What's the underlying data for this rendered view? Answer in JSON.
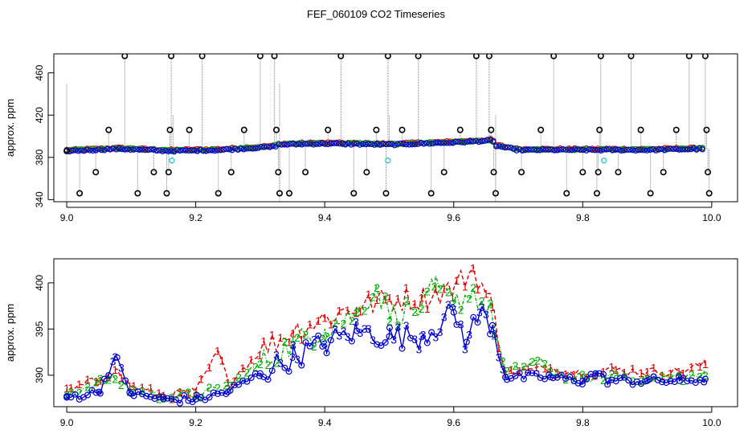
{
  "title": "FEF_060109  CO2 Timeseries",
  "chart_data": [
    {
      "type": "scatter",
      "panel": "top",
      "ylabel": "approx. ppm",
      "xlabel": "",
      "xlim": [
        8.98,
        10.04
      ],
      "ylim": [
        338,
        478
      ],
      "xticks": [
        9.0,
        9.2,
        9.4,
        9.6,
        9.8,
        10.0
      ],
      "xtick_labels": [
        "9.0",
        "9.2",
        "9.4",
        "9.6",
        "9.8",
        "10.0"
      ],
      "yticks": [
        340,
        380,
        420,
        460
      ],
      "ytick_labels": [
        "340",
        "380",
        "420",
        "460"
      ],
      "colors": {
        "red": "#dd0000",
        "green": "#00aa00",
        "blue": "#0000cc",
        "outlier": "#000000",
        "flag": "#33cccc",
        "line": "#888888"
      },
      "baseline": [
        {
          "x": 9.0,
          "y": 386
        },
        {
          "x": 9.08,
          "y": 388
        },
        {
          "x": 9.16,
          "y": 386
        },
        {
          "x": 9.24,
          "y": 387
        },
        {
          "x": 9.32,
          "y": 390
        },
        {
          "x": 9.33,
          "y": 392
        },
        {
          "x": 9.4,
          "y": 393
        },
        {
          "x": 9.5,
          "y": 392
        },
        {
          "x": 9.6,
          "y": 394
        },
        {
          "x": 9.66,
          "y": 396
        },
        {
          "x": 9.665,
          "y": 391
        },
        {
          "x": 9.7,
          "y": 387
        },
        {
          "x": 9.8,
          "y": 387
        },
        {
          "x": 9.83,
          "y": 387
        },
        {
          "x": 9.9,
          "y": 387
        },
        {
          "x": 9.99,
          "y": 388
        }
      ],
      "outliers": [
        {
          "x": 9.0,
          "y": 386
        },
        {
          "x": 9.02,
          "y": 346
        },
        {
          "x": 9.045,
          "y": 366
        },
        {
          "x": 9.065,
          "y": 406
        },
        {
          "x": 9.09,
          "y": 476
        },
        {
          "x": 9.11,
          "y": 346
        },
        {
          "x": 9.135,
          "y": 366
        },
        {
          "x": 9.155,
          "y": 346
        },
        {
          "x": 9.158,
          "y": 366
        },
        {
          "x": 9.16,
          "y": 406
        },
        {
          "x": 9.162,
          "y": 476
        },
        {
          "x": 9.19,
          "y": 406
        },
        {
          "x": 9.21,
          "y": 476
        },
        {
          "x": 9.235,
          "y": 346
        },
        {
          "x": 9.255,
          "y": 366
        },
        {
          "x": 9.275,
          "y": 406
        },
        {
          "x": 9.3,
          "y": 476
        },
        {
          "x": 9.322,
          "y": 476
        },
        {
          "x": 9.325,
          "y": 406
        },
        {
          "x": 9.328,
          "y": 366
        },
        {
          "x": 9.33,
          "y": 346
        },
        {
          "x": 9.345,
          "y": 346
        },
        {
          "x": 9.37,
          "y": 366
        },
        {
          "x": 9.405,
          "y": 406
        },
        {
          "x": 9.425,
          "y": 476
        },
        {
          "x": 9.445,
          "y": 346
        },
        {
          "x": 9.465,
          "y": 366
        },
        {
          "x": 9.48,
          "y": 406
        },
        {
          "x": 9.495,
          "y": 346
        },
        {
          "x": 9.498,
          "y": 476
        },
        {
          "x": 9.52,
          "y": 406
        },
        {
          "x": 9.545,
          "y": 476
        },
        {
          "x": 9.565,
          "y": 346
        },
        {
          "x": 9.585,
          "y": 366
        },
        {
          "x": 9.61,
          "y": 406
        },
        {
          "x": 9.635,
          "y": 476
        },
        {
          "x": 9.655,
          "y": 476
        },
        {
          "x": 9.658,
          "y": 406
        },
        {
          "x": 9.662,
          "y": 366
        },
        {
          "x": 9.665,
          "y": 346
        },
        {
          "x": 9.705,
          "y": 366
        },
        {
          "x": 9.735,
          "y": 406
        },
        {
          "x": 9.755,
          "y": 476
        },
        {
          "x": 9.775,
          "y": 346
        },
        {
          "x": 9.8,
          "y": 366
        },
        {
          "x": 9.822,
          "y": 346
        },
        {
          "x": 9.824,
          "y": 366
        },
        {
          "x": 9.826,
          "y": 406
        },
        {
          "x": 9.828,
          "y": 476
        },
        {
          "x": 9.855,
          "y": 366
        },
        {
          "x": 9.875,
          "y": 476
        },
        {
          "x": 9.89,
          "y": 406
        },
        {
          "x": 9.905,
          "y": 346
        },
        {
          "x": 9.925,
          "y": 366
        },
        {
          "x": 9.945,
          "y": 406
        },
        {
          "x": 9.965,
          "y": 476
        },
        {
          "x": 9.99,
          "y": 476
        },
        {
          "x": 9.992,
          "y": 406
        },
        {
          "x": 9.994,
          "y": 366
        },
        {
          "x": 9.996,
          "y": 346
        }
      ],
      "flagged": [
        {
          "x": 9.163,
          "y": 377
        },
        {
          "x": 9.498,
          "y": 377
        },
        {
          "x": 9.833,
          "y": 377
        }
      ]
    },
    {
      "type": "line",
      "panel": "bottom",
      "ylabel": "approx. ppm",
      "xlabel": "",
      "xlim": [
        8.98,
        10.04
      ],
      "ylim": [
        386.6,
        402.6
      ],
      "xticks": [
        9.0,
        9.2,
        9.4,
        9.6,
        9.8,
        10.0
      ],
      "xtick_labels": [
        "9.0",
        "9.2",
        "9.4",
        "9.6",
        "9.8",
        "10.0"
      ],
      "yticks": [
        390,
        395,
        400
      ],
      "ytick_labels": [
        "390",
        "395",
        "400"
      ],
      "series": [
        {
          "name": "1",
          "color": "#dd0000",
          "points": [
            {
              "x": 9.0,
              "y": 388.2
            },
            {
              "x": 9.05,
              "y": 389.6
            },
            {
              "x": 9.075,
              "y": 390.6
            },
            {
              "x": 9.1,
              "y": 388.8
            },
            {
              "x": 9.15,
              "y": 387.8
            },
            {
              "x": 9.2,
              "y": 388.2
            },
            {
              "x": 9.235,
              "y": 392.6
            },
            {
              "x": 9.25,
              "y": 389.2
            },
            {
              "x": 9.3,
              "y": 392.6
            },
            {
              "x": 9.35,
              "y": 394.8
            },
            {
              "x": 9.4,
              "y": 396.2
            },
            {
              "x": 9.45,
              "y": 397.4
            },
            {
              "x": 9.5,
              "y": 398.2
            },
            {
              "x": 9.55,
              "y": 398.4
            },
            {
              "x": 9.6,
              "y": 399.4
            },
            {
              "x": 9.63,
              "y": 401.6
            },
            {
              "x": 9.66,
              "y": 397.4
            },
            {
              "x": 9.68,
              "y": 390.2
            },
            {
              "x": 9.75,
              "y": 390.8
            },
            {
              "x": 9.8,
              "y": 390.2
            },
            {
              "x": 9.85,
              "y": 390.6
            },
            {
              "x": 9.9,
              "y": 390.4
            },
            {
              "x": 9.95,
              "y": 390.4
            },
            {
              "x": 9.99,
              "y": 391.2
            }
          ]
        },
        {
          "name": "2",
          "color": "#00aa00",
          "points": [
            {
              "x": 9.0,
              "y": 388.0
            },
            {
              "x": 9.05,
              "y": 389.2
            },
            {
              "x": 9.075,
              "y": 389.6
            },
            {
              "x": 9.1,
              "y": 388.4
            },
            {
              "x": 9.15,
              "y": 387.6
            },
            {
              "x": 9.2,
              "y": 387.8
            },
            {
              "x": 9.25,
              "y": 388.8
            },
            {
              "x": 9.3,
              "y": 391.2
            },
            {
              "x": 9.35,
              "y": 393.4
            },
            {
              "x": 9.4,
              "y": 395.0
            },
            {
              "x": 9.45,
              "y": 396.8
            },
            {
              "x": 9.48,
              "y": 399.6
            },
            {
              "x": 9.5,
              "y": 396.6
            },
            {
              "x": 9.55,
              "y": 397.2
            },
            {
              "x": 9.57,
              "y": 399.6
            },
            {
              "x": 9.6,
              "y": 397.8
            },
            {
              "x": 9.63,
              "y": 399.2
            },
            {
              "x": 9.66,
              "y": 396.2
            },
            {
              "x": 9.68,
              "y": 390.2
            },
            {
              "x": 9.73,
              "y": 391.6
            },
            {
              "x": 9.75,
              "y": 390.4
            },
            {
              "x": 9.8,
              "y": 389.6
            },
            {
              "x": 9.85,
              "y": 390.0
            },
            {
              "x": 9.9,
              "y": 389.6
            },
            {
              "x": 9.95,
              "y": 389.8
            },
            {
              "x": 9.99,
              "y": 390.0
            }
          ]
        },
        {
          "name": "3",
          "color": "#0000cc",
          "points": [
            {
              "x": 9.0,
              "y": 387.6
            },
            {
              "x": 9.05,
              "y": 388.2
            },
            {
              "x": 9.075,
              "y": 392.0
            },
            {
              "x": 9.1,
              "y": 388.0
            },
            {
              "x": 9.15,
              "y": 387.4
            },
            {
              "x": 9.2,
              "y": 387.4
            },
            {
              "x": 9.25,
              "y": 388.2
            },
            {
              "x": 9.3,
              "y": 390.2
            },
            {
              "x": 9.35,
              "y": 392.0
            },
            {
              "x": 9.4,
              "y": 393.4
            },
            {
              "x": 9.45,
              "y": 394.8
            },
            {
              "x": 9.5,
              "y": 394.2
            },
            {
              "x": 9.55,
              "y": 394.2
            },
            {
              "x": 9.6,
              "y": 396.8
            },
            {
              "x": 9.62,
              "y": 393.6
            },
            {
              "x": 9.64,
              "y": 396.8
            },
            {
              "x": 9.66,
              "y": 395.4
            },
            {
              "x": 9.68,
              "y": 389.8
            },
            {
              "x": 9.75,
              "y": 389.8
            },
            {
              "x": 9.8,
              "y": 389.4
            },
            {
              "x": 9.82,
              "y": 390.2
            },
            {
              "x": 9.84,
              "y": 389.4
            },
            {
              "x": 9.9,
              "y": 389.4
            },
            {
              "x": 9.95,
              "y": 389.4
            },
            {
              "x": 9.99,
              "y": 389.6
            }
          ]
        }
      ]
    }
  ]
}
